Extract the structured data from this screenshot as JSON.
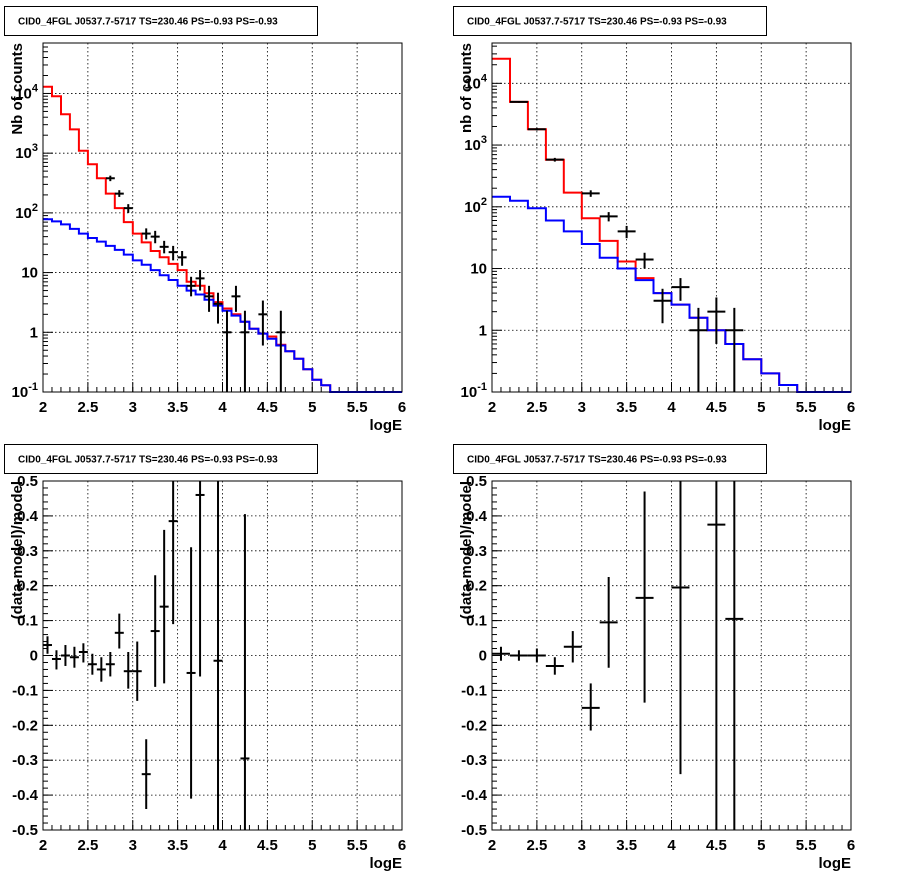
{
  "chart_data": [
    {
      "type": "line",
      "title": "CID0_4FGL J0537.7-5717 TS=230.46 PS=-0.93 PS=-0.93",
      "xlabel": "logE",
      "ylabel": "Nb of counts",
      "xlim": [
        2,
        6
      ],
      "ylim": [
        0.1,
        70000
      ],
      "ylog": true,
      "grid": true,
      "xticks": [
        "2",
        "2.5",
        "3",
        "3.5",
        "4",
        "4.5",
        "5",
        "5.5",
        "6"
      ],
      "yticks": [
        {
          "value": 0.1,
          "label": "10^-1"
        },
        {
          "value": 1,
          "label": "1"
        },
        {
          "value": 10,
          "label": "10"
        },
        {
          "value": 100,
          "label": "10^2"
        },
        {
          "value": 1000,
          "label": "10^3"
        },
        {
          "value": 10000,
          "label": "10^4"
        }
      ],
      "bin_width": 0.1,
      "series": [
        {
          "color": "#ff0000",
          "style": "step",
          "x": [
            2.0,
            2.1,
            2.2,
            2.3,
            2.4,
            2.5,
            2.6,
            2.7,
            2.8,
            2.9,
            3.0,
            3.1,
            3.2,
            3.3,
            3.4,
            3.5,
            3.6,
            3.7,
            3.8,
            3.9,
            4.0,
            4.1,
            4.2,
            4.3,
            4.4,
            4.5,
            4.6,
            4.7,
            4.8,
            4.9,
            5.0,
            5.1,
            5.2,
            5.3,
            5.4,
            5.5,
            5.6,
            5.7,
            5.8,
            5.9
          ],
          "values": [
            13000,
            9000,
            4500,
            2500,
            1100,
            650,
            380,
            210,
            120,
            70,
            45,
            32,
            23,
            18,
            14,
            11,
            7,
            6,
            4.5,
            3.2,
            2.5,
            2.0,
            1.5,
            1.15,
            0.95,
            0.85,
            0.62,
            0.48,
            0.36,
            0.24,
            0.16,
            0.13,
            0.1,
            0.1,
            0.1,
            0.1,
            0.1,
            0.1,
            0.1,
            0.1
          ]
        },
        {
          "color": "#0000ff",
          "style": "step",
          "x": [
            2.0,
            2.1,
            2.2,
            2.3,
            2.4,
            2.5,
            2.6,
            2.7,
            2.8,
            2.9,
            3.0,
            3.1,
            3.2,
            3.3,
            3.4,
            3.5,
            3.6,
            3.7,
            3.8,
            3.9,
            4.0,
            4.1,
            4.2,
            4.3,
            4.4,
            4.5,
            4.6,
            4.7,
            4.8,
            4.9,
            5.0,
            5.1,
            5.2,
            5.3,
            5.4,
            5.5,
            5.6,
            5.7,
            5.8,
            5.9
          ],
          "values": [
            78,
            72,
            64,
            54,
            45,
            38,
            33,
            28,
            24,
            20,
            16,
            13.5,
            11,
            9,
            7.5,
            6,
            5,
            4.3,
            3.5,
            2.8,
            2.3,
            1.9,
            1.5,
            1.15,
            0.95,
            0.78,
            0.6,
            0.48,
            0.36,
            0.24,
            0.16,
            0.13,
            0.1,
            0.1,
            0.1,
            0.1,
            0.1,
            0.1,
            0.1,
            0.1
          ]
        },
        {
          "color": "#000000",
          "style": "errorbar",
          "points": [
            {
              "x": 2.75,
              "y": 380,
              "lo": 340,
              "hi": 420
            },
            {
              "x": 2.85,
              "y": 210,
              "lo": 185,
              "hi": 240
            },
            {
              "x": 2.95,
              "y": 120,
              "lo": 100,
              "hi": 140
            },
            {
              "x": 3.15,
              "y": 45,
              "lo": 36,
              "hi": 55
            },
            {
              "x": 3.25,
              "y": 40,
              "lo": 31,
              "hi": 50
            },
            {
              "x": 3.35,
              "y": 27,
              "lo": 21,
              "hi": 34
            },
            {
              "x": 3.45,
              "y": 22,
              "lo": 16,
              "hi": 28
            },
            {
              "x": 3.55,
              "y": 18,
              "lo": 13,
              "hi": 23
            },
            {
              "x": 3.65,
              "y": 6,
              "lo": 4,
              "hi": 8.5
            },
            {
              "x": 3.75,
              "y": 8,
              "lo": 5,
              "hi": 11
            },
            {
              "x": 3.85,
              "y": 4,
              "lo": 2.2,
              "hi": 6
            },
            {
              "x": 3.95,
              "y": 3,
              "lo": 1.4,
              "hi": 4.6
            },
            {
              "x": 4.05,
              "y": 1,
              "lo": 0.1,
              "hi": 2.3
            },
            {
              "x": 4.15,
              "y": 4,
              "lo": 2.2,
              "hi": 6
            },
            {
              "x": 4.25,
              "y": 1,
              "lo": 0.1,
              "hi": 2.3
            },
            {
              "x": 4.45,
              "y": 2,
              "lo": 0.6,
              "hi": 3.4
            },
            {
              "x": 4.65,
              "y": 1,
              "lo": 0.1,
              "hi": 2.3
            }
          ]
        }
      ]
    },
    {
      "type": "line",
      "title": "CID0_4FGL J0537.7-5717 TS=230.46 PS=-0.93 PS=-0.93",
      "xlabel": "logE",
      "ylabel": "nb of counts",
      "xlim": [
        2,
        6
      ],
      "ylim": [
        0.1,
        45000
      ],
      "ylog": true,
      "grid": true,
      "xticks": [
        "2",
        "2.5",
        "3",
        "3.5",
        "4",
        "4.5",
        "5",
        "5.5",
        "6"
      ],
      "yticks": [
        {
          "value": 0.1,
          "label": "10^-1"
        },
        {
          "value": 1,
          "label": "1"
        },
        {
          "value": 10,
          "label": "10"
        },
        {
          "value": 100,
          "label": "10^2"
        },
        {
          "value": 1000,
          "label": "10^3"
        },
        {
          "value": 10000,
          "label": "10^4"
        }
      ],
      "bin_width": 0.2,
      "series": [
        {
          "color": "#ff0000",
          "style": "step",
          "x": [
            2.0,
            2.2,
            2.4,
            2.6,
            2.8,
            3.0,
            3.2,
            3.4,
            3.6,
            3.8,
            4.0,
            4.2,
            4.4,
            4.6,
            4.8,
            5.0,
            5.2,
            5.4,
            5.6,
            5.8
          ],
          "values": [
            25000,
            5000,
            1800,
            580,
            170,
            65,
            28,
            13,
            7,
            4,
            2.6,
            1.6,
            1.0,
            0.6,
            0.34,
            0.2,
            0.13,
            0.1,
            0.1,
            0.1
          ]
        },
        {
          "color": "#0000ff",
          "style": "step",
          "x": [
            2.0,
            2.2,
            2.4,
            2.6,
            2.8,
            3.0,
            3.2,
            3.4,
            3.6,
            3.8,
            4.0,
            4.2,
            4.4,
            4.6,
            4.8,
            5.0,
            5.2,
            5.4,
            5.6,
            5.8
          ],
          "values": [
            145,
            125,
            95,
            60,
            40,
            25,
            15,
            10,
            6.5,
            4,
            2.6,
            1.6,
            1.0,
            0.6,
            0.34,
            0.2,
            0.13,
            0.1,
            0.1,
            0.1
          ]
        },
        {
          "color": "#000000",
          "style": "errorbar",
          "points": [
            {
              "x": 2.3,
              "y": 5000,
              "lo": 4850,
              "hi": 5150
            },
            {
              "x": 2.5,
              "y": 1800,
              "lo": 1720,
              "hi": 1880
            },
            {
              "x": 2.7,
              "y": 580,
              "lo": 540,
              "hi": 620
            },
            {
              "x": 3.1,
              "y": 165,
              "lo": 145,
              "hi": 185
            },
            {
              "x": 3.3,
              "y": 70,
              "lo": 58,
              "hi": 82
            },
            {
              "x": 3.5,
              "y": 40,
              "lo": 31,
              "hi": 49
            },
            {
              "x": 3.7,
              "y": 14,
              "lo": 10,
              "hi": 18
            },
            {
              "x": 3.9,
              "y": 3,
              "lo": 1.3,
              "hi": 4.7
            },
            {
              "x": 4.1,
              "y": 5,
              "lo": 3,
              "hi": 7
            },
            {
              "x": 4.3,
              "y": 1,
              "lo": 0.1,
              "hi": 2.3
            },
            {
              "x": 4.5,
              "y": 2,
              "lo": 0.6,
              "hi": 3.4
            },
            {
              "x": 4.7,
              "y": 1,
              "lo": 0.1,
              "hi": 2.3
            }
          ]
        }
      ]
    },
    {
      "type": "scatter",
      "title": "CID0_4FGL J0537.7-5717 TS=230.46 PS=-0.93 PS=-0.93",
      "xlabel": "logE",
      "ylabel": "(data-model)/model",
      "xlim": [
        2,
        6
      ],
      "ylim": [
        -0.5,
        0.5
      ],
      "grid": true,
      "xticks": [
        "2",
        "2.5",
        "3",
        "3.5",
        "4",
        "4.5",
        "5",
        "5.5",
        "6"
      ],
      "yticks": [
        "-0.5",
        "-0.4",
        "-0.3",
        "-0.2",
        "-0.1",
        "0",
        "0.1",
        "0.2",
        "0.3",
        "0.4",
        "0.5"
      ],
      "bin_width": 0.1,
      "series": [
        {
          "color": "#000000",
          "style": "errorbar",
          "points": [
            {
              "x": 2.05,
              "y": 0.03,
              "lo": 0.005,
              "hi": 0.055
            },
            {
              "x": 2.15,
              "y": -0.01,
              "lo": -0.04,
              "hi": 0.015
            },
            {
              "x": 2.25,
              "y": 0.0,
              "lo": -0.03,
              "hi": 0.03
            },
            {
              "x": 2.35,
              "y": -0.005,
              "lo": -0.035,
              "hi": 0.025
            },
            {
              "x": 2.45,
              "y": 0.01,
              "lo": -0.02,
              "hi": 0.035
            },
            {
              "x": 2.55,
              "y": -0.025,
              "lo": -0.055,
              "hi": 0.005
            },
            {
              "x": 2.65,
              "y": -0.04,
              "lo": -0.075,
              "hi": -0.005
            },
            {
              "x": 2.75,
              "y": -0.025,
              "lo": -0.06,
              "hi": 0.01
            },
            {
              "x": 2.85,
              "y": 0.065,
              "lo": 0.02,
              "hi": 0.12
            },
            {
              "x": 2.95,
              "y": -0.045,
              "lo": -0.095,
              "hi": 0.01
            },
            {
              "x": 3.05,
              "y": -0.045,
              "lo": -0.13,
              "hi": 0.04
            },
            {
              "x": 3.15,
              "y": -0.34,
              "lo": -0.44,
              "hi": -0.24
            },
            {
              "x": 3.25,
              "y": 0.07,
              "lo": -0.09,
              "hi": 0.23
            },
            {
              "x": 3.35,
              "y": 0.14,
              "lo": -0.08,
              "hi": 0.36
            },
            {
              "x": 3.45,
              "y": 0.385,
              "lo": 0.09,
              "hi": 0.5
            },
            {
              "x": 3.65,
              "y": -0.05,
              "lo": -0.41,
              "hi": 0.31
            },
            {
              "x": 3.75,
              "y": 0.46,
              "lo": -0.06,
              "hi": 0.5
            },
            {
              "x": 3.95,
              "y": -0.015,
              "lo": -0.5,
              "hi": 0.5
            },
            {
              "x": 4.25,
              "y": -0.295,
              "lo": -0.5,
              "hi": 0.405
            }
          ]
        }
      ]
    },
    {
      "type": "scatter",
      "title": "CID0_4FGL J0537.7-5717 TS=230.46 PS=-0.93 PS=-0.93",
      "xlabel": "logE",
      "ylabel": "(data-model)/model",
      "xlim": [
        2,
        6
      ],
      "ylim": [
        -0.5,
        0.5
      ],
      "grid": true,
      "xticks": [
        "2",
        "2.5",
        "3",
        "3.5",
        "4",
        "4.5",
        "5",
        "5.5",
        "6"
      ],
      "yticks": [
        "-0.5",
        "-0.4",
        "-0.3",
        "-0.2",
        "-0.1",
        "0",
        "0.1",
        "0.2",
        "0.3",
        "0.4",
        "0.5"
      ],
      "bin_width": 0.2,
      "series": [
        {
          "color": "#000000",
          "style": "errorbar",
          "points": [
            {
              "x": 2.1,
              "y": 0.005,
              "lo": -0.015,
              "hi": 0.025
            },
            {
              "x": 2.3,
              "y": 0.0,
              "lo": -0.015,
              "hi": 0.015
            },
            {
              "x": 2.5,
              "y": 0.0,
              "lo": -0.02,
              "hi": 0.02
            },
            {
              "x": 2.7,
              "y": -0.03,
              "lo": -0.055,
              "hi": -0.005
            },
            {
              "x": 2.9,
              "y": 0.025,
              "lo": -0.02,
              "hi": 0.07
            },
            {
              "x": 3.1,
              "y": -0.15,
              "lo": -0.215,
              "hi": -0.08
            },
            {
              "x": 3.3,
              "y": 0.095,
              "lo": -0.035,
              "hi": 0.225
            },
            {
              "x": 3.7,
              "y": 0.165,
              "lo": -0.135,
              "hi": 0.47
            },
            {
              "x": 4.1,
              "y": 0.195,
              "lo": -0.34,
              "hi": 0.5
            },
            {
              "x": 4.5,
              "y": 0.375,
              "lo": -0.5,
              "hi": 0.5
            },
            {
              "x": 4.7,
              "y": 0.105,
              "lo": -0.5,
              "hi": 0.5
            }
          ]
        }
      ]
    }
  ]
}
